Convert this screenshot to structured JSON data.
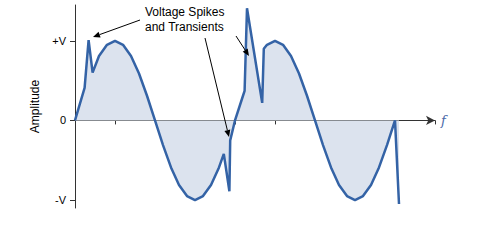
{
  "chart_data": {
    "type": "area",
    "x": [
      0,
      0.12,
      0.17,
      0.22,
      0.3,
      0.4,
      0.5,
      0.6,
      0.7,
      0.8,
      0.9,
      1.0,
      1.1,
      1.2,
      1.3,
      1.4,
      1.5,
      1.6,
      1.7,
      1.8,
      1.86,
      1.93,
      1.94,
      2.0,
      2.1,
      2.12,
      2.15,
      2.34,
      2.36,
      2.4,
      2.5,
      2.6,
      2.7,
      2.8,
      2.9,
      3.0,
      3.1,
      3.2,
      3.3,
      3.4,
      3.5,
      3.6,
      3.7,
      3.8,
      3.9,
      4.0,
      4.05
    ],
    "values": [
      0,
      0.41,
      1.01,
      0.6,
      0.81,
      0.95,
      1,
      0.95,
      0.81,
      0.59,
      0.31,
      0,
      -0.31,
      -0.59,
      -0.81,
      -0.95,
      -1,
      -0.95,
      -0.81,
      -0.59,
      -0.42,
      -0.89,
      -0.25,
      0,
      0.31,
      0.37,
      1.41,
      0.22,
      0.9,
      0.95,
      1,
      0.95,
      0.81,
      0.59,
      0.31,
      0,
      -0.31,
      -0.59,
      -0.81,
      -0.95,
      -1,
      -0.95,
      -0.81,
      -0.59,
      -0.31,
      0,
      -1.05
    ],
    "color": "#3463a6",
    "x_label": "f",
    "y_label": "Amplitude",
    "annotation": [
      "Voltage Spikes",
      "and Transients"
    ],
    "xlim": [
      0,
      4.5
    ],
    "xticks": [
      0,
      0.5,
      1,
      1.5,
      2,
      2.5,
      3,
      3.5,
      4,
      4.5
    ],
    "ylim": [
      -1.1,
      1.45
    ],
    "yticks": [
      {
        "value": -1,
        "label": "-V"
      },
      0,
      {
        "value": 1,
        "label": "+V"
      }
    ],
    "grid": false,
    "tick_labels": "y"
  }
}
